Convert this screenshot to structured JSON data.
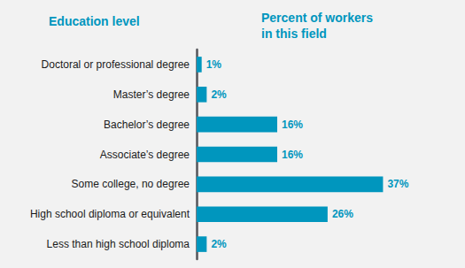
{
  "chart_data": {
    "type": "bar",
    "orientation": "horizontal",
    "ylabel": "Education level",
    "xlabel": "Percent of workers\nin this field",
    "categories": [
      "Doctoral or professional degree",
      "Master’s degree",
      "Bachelor’s degree",
      "Associate’s degree",
      "Some college, no degree",
      "High school diploma or equivalent",
      "Less than high school diploma"
    ],
    "values": [
      1,
      2,
      16,
      16,
      37,
      26,
      2
    ],
    "value_labels": [
      "1%",
      "2%",
      "16%",
      "16%",
      "37%",
      "26%",
      "2%"
    ],
    "data_labels": true,
    "color": "#0096be",
    "xlim": [
      0,
      48
    ],
    "tick_labels": "y",
    "grid": false
  }
}
